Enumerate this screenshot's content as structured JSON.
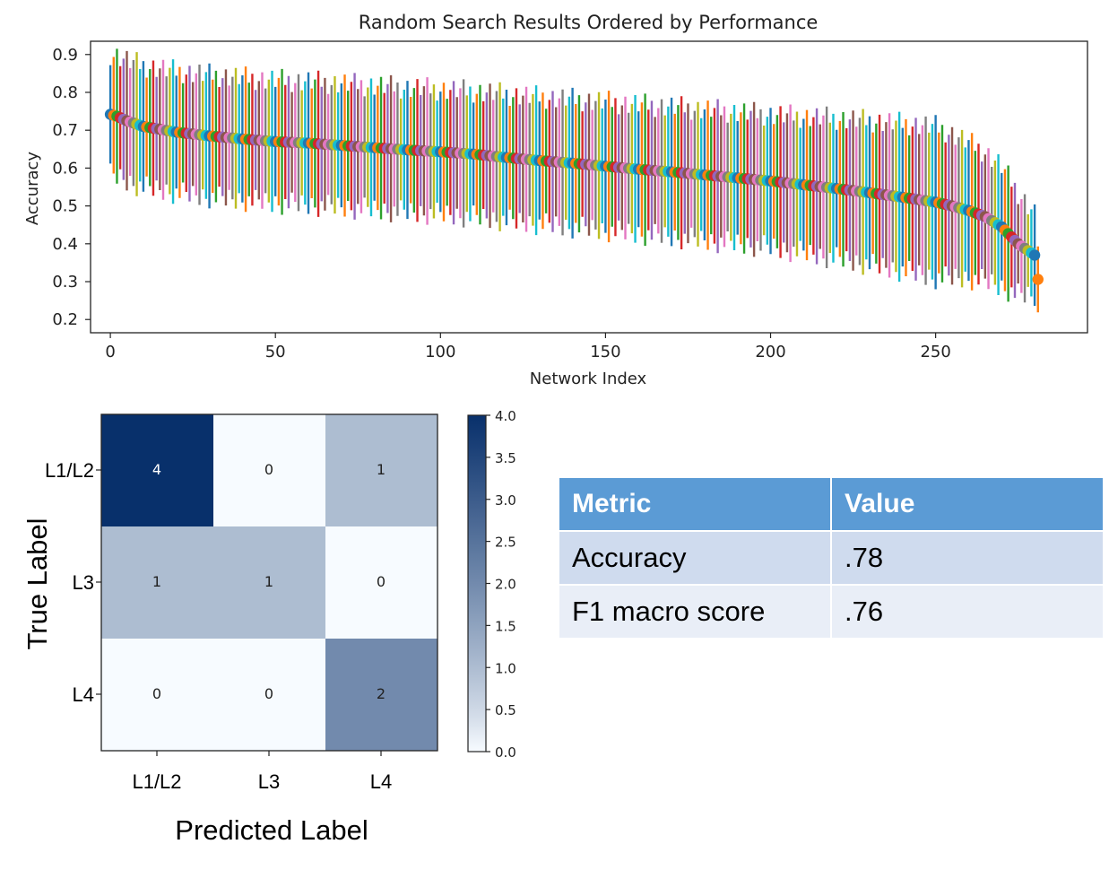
{
  "colors": {
    "cmap_low": "#f7fbff",
    "cmap_high": "#08306b",
    "table_header_bg": "#5b9bd5",
    "table_row_a_bg": "#cfdbee",
    "table_row_b_bg": "#e9eef7",
    "series_palette": [
      "#1f77b4",
      "#ff7f0e",
      "#2ca02c",
      "#d62728",
      "#9467bd",
      "#8c564b",
      "#e377c2",
      "#7f7f7f",
      "#bcbd22",
      "#17becf"
    ]
  },
  "chart_data": [
    {
      "type": "scatter",
      "title": "Random Search Results Ordered by Performance",
      "xlabel": "Network Index",
      "ylabel": "Accuracy",
      "xlim": [
        -6,
        296
      ],
      "ylim": [
        0.165,
        0.935
      ],
      "xticks": [
        0,
        50,
        100,
        150,
        200,
        250
      ],
      "yticks": [
        0.2,
        0.3,
        0.4,
        0.5,
        0.6,
        0.7,
        0.8,
        0.9
      ],
      "ytick_labels": [
        "0.2",
        "0.3",
        "0.4",
        "0.5",
        "0.6",
        "0.7",
        "0.8",
        "0.9"
      ],
      "grid": false,
      "legend": "none",
      "n_points": 282,
      "mean_accuracy_profile": {
        "index": [
          0,
          2,
          5,
          10,
          20,
          30,
          40,
          50,
          60,
          70,
          80,
          90,
          100,
          110,
          120,
          130,
          140,
          150,
          160,
          170,
          180,
          190,
          200,
          210,
          220,
          230,
          240,
          250,
          255,
          260,
          265,
          270,
          275,
          280,
          281
        ],
        "accuracy": [
          0.742,
          0.737,
          0.725,
          0.71,
          0.695,
          0.685,
          0.677,
          0.67,
          0.666,
          0.66,
          0.654,
          0.648,
          0.643,
          0.637,
          0.628,
          0.62,
          0.613,
          0.605,
          0.597,
          0.59,
          0.582,
          0.574,
          0.566,
          0.556,
          0.546,
          0.535,
          0.523,
          0.51,
          0.5,
          0.488,
          0.472,
          0.445,
          0.4,
          0.37,
          0.306
        ]
      },
      "error_bar_halfwidth": {
        "index": [
          0,
          100,
          200,
          250,
          270,
          281
        ],
        "halfwidth": [
          0.16,
          0.165,
          0.175,
          0.2,
          0.16,
          0.105
        ]
      }
    },
    {
      "type": "heatmap",
      "xlabel": "Predicted Label",
      "ylabel": "True Label",
      "x_categories": [
        "L1/L2",
        "L3",
        "L4"
      ],
      "y_categories": [
        "L1/L2",
        "L3",
        "L4"
      ],
      "values": [
        [
          4,
          0,
          1
        ],
        [
          1,
          1,
          0
        ],
        [
          0,
          0,
          2
        ]
      ],
      "cell_labels": [
        [
          "4",
          "0",
          "1"
        ],
        [
          "1",
          "1",
          "0"
        ],
        [
          "0",
          "0",
          "2"
        ]
      ],
      "colorbar": {
        "range": [
          0,
          4
        ],
        "ticks": [
          0,
          0.5,
          1,
          1.5,
          2,
          2.5,
          3,
          3.5,
          4
        ],
        "tick_labels": [
          "0.0",
          "0.5",
          "1.0",
          "1.5",
          "2.0",
          "2.5",
          "3.0",
          "3.5",
          "4.0"
        ]
      }
    },
    {
      "type": "table",
      "columns": [
        "Metric",
        "Value"
      ],
      "rows": [
        [
          "Accuracy",
          ".78"
        ],
        [
          "F1 macro score",
          ".76"
        ]
      ]
    }
  ]
}
